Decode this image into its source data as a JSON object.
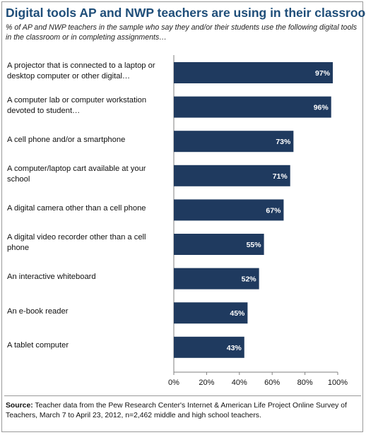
{
  "header": {
    "title": "Digital tools AP and NWP teachers are using in their classrooms",
    "subtitle": "% of AP and NWP teachers in the sample who say they and/or their students use the following digital tools in the classroom or in completing assignments…"
  },
  "chart_data": {
    "type": "bar",
    "orientation": "horizontal",
    "categories": [
      "A projector that is connected to a laptop or desktop computer or other digital…",
      "A computer lab or computer workstation devoted to student…",
      "A cell phone and/or a smartphone",
      "A computer/laptop cart available at your school",
      "A digital camera other than a cell phone",
      "A digital video recorder other than a cell phone",
      "An interactive whiteboard",
      "An e-book reader",
      "A tablet computer"
    ],
    "values": [
      97,
      96,
      73,
      71,
      67,
      55,
      52,
      45,
      43
    ],
    "data_labels": [
      "97%",
      "96%",
      "73%",
      "71%",
      "67%",
      "55%",
      "52%",
      "45%",
      "43%"
    ],
    "xlim": [
      0,
      100
    ],
    "x_ticks": [
      "0%",
      "20%",
      "40%",
      "60%",
      "80%",
      "100%"
    ],
    "bar_color": "#1f3a5f",
    "label_color": "#ffffff",
    "grid": false,
    "legend": "none"
  },
  "footer": {
    "source_label": "Source:",
    "source_text": " Teacher data from the Pew Research Center's Internet & American Life Project Online Survey of Teachers, March 7 to April 23, 2012, n=2,462 middle and high school teachers."
  }
}
